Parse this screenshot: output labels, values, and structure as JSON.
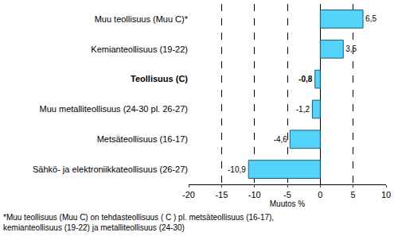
{
  "chart_data": {
    "type": "bar",
    "orientation": "horizontal",
    "categories": [
      "Muu teollisuus (Muu C)*",
      "Kemianteollisuus (19-22)",
      "Teollisuus (C)",
      "Muu metalliteollisuus (24-30 pl. 26-27)",
      "Metsäteollisuus (16-17)",
      "Sähkö- ja elektroniikkateollisuus (26-27)"
    ],
    "values": [
      6.5,
      3.5,
      -0.8,
      -1.2,
      -4.6,
      -10.9
    ],
    "value_labels": [
      "6,5",
      "3,5",
      "-0,8",
      "-1,2",
      "-4,6",
      "-10,9"
    ],
    "data_labels": true,
    "color": "#55d4fb",
    "x_label": "Muutos %",
    "xlim": [
      -20,
      10
    ],
    "xticks": [
      -20,
      -15,
      -10,
      -5,
      0,
      5,
      10
    ],
    "grid": true,
    "annotations": [
      "*Muu teollisuus (Muu C) on tehdasteollisuus ( C ) pl. metsäteollisuus (16-17),",
      "kemianteollisuus (19-22) ja metalliteollisuus (24-30)"
    ]
  }
}
